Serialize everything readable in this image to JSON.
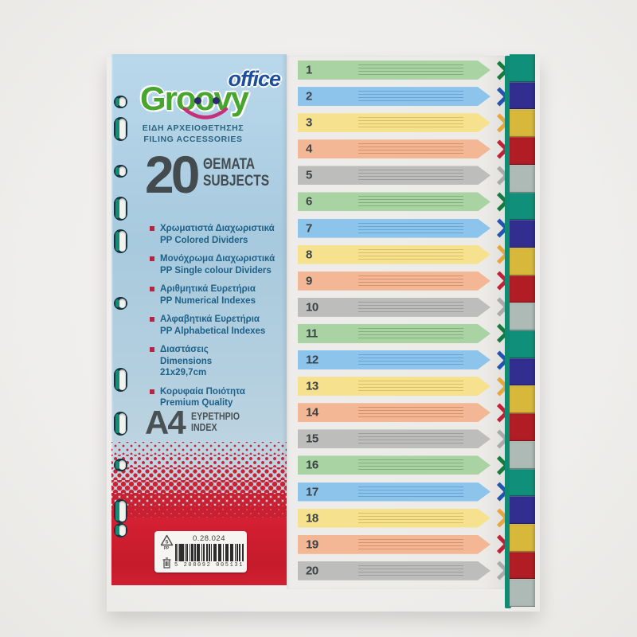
{
  "product": {
    "brand": {
      "name_top": "office",
      "name_main": "Groovy",
      "subtitle_gr": "ΕΙΔΗ ΑΡΧΕΙΟΘΕΤΗΣΗΣ",
      "subtitle_en": "FILING ACCESSORIES"
    },
    "count": {
      "number": "20",
      "label_gr": "ΘΕΜΑΤΑ",
      "label_en": "SUBJECTS"
    },
    "features": [
      {
        "gr": "Χρωματιστά Διαχωριστικά",
        "en": "PP Colored Dividers"
      },
      {
        "gr": "Μονόχρωμα Διαχωριστικά",
        "en": "PP Single colour Dividers"
      },
      {
        "gr": "Αριθμητικά Ευρετήρια",
        "en": "PP Numerical Indexes"
      },
      {
        "gr": "Αλφαβητικά Ευρετήρια",
        "en": "PP Alphabetical Indexes"
      },
      {
        "gr": "Διαστάσεις",
        "en": "Dimensions",
        "extra": "21x29,7cm"
      },
      {
        "gr": "Κορυφαία Ποιότητα",
        "en": "Premium Quality"
      }
    ],
    "format": {
      "size": "A4",
      "label_gr": "ΕΥΡΕΤΗΡΙΟ",
      "label_en": "INDEX"
    },
    "sticker": {
      "code": "0.28.024",
      "barcode_digits": "5 208092 005131",
      "recycle_number": "5",
      "recycle_material": "PP"
    },
    "index_rows": [
      {
        "label": "1",
        "color": "green"
      },
      {
        "label": "2",
        "color": "blue"
      },
      {
        "label": "3",
        "color": "yellow"
      },
      {
        "label": "4",
        "color": "salmon"
      },
      {
        "label": "5",
        "color": "gray"
      },
      {
        "label": "6",
        "color": "green"
      },
      {
        "label": "7",
        "color": "blue"
      },
      {
        "label": "8",
        "color": "yellow"
      },
      {
        "label": "9",
        "color": "salmon"
      },
      {
        "label": "10",
        "color": "gray"
      },
      {
        "label": "11",
        "color": "green"
      },
      {
        "label": "12",
        "color": "blue"
      },
      {
        "label": "13",
        "color": "yellow"
      },
      {
        "label": "14",
        "color": "salmon"
      },
      {
        "label": "15",
        "color": "gray"
      },
      {
        "label": "16",
        "color": "green"
      },
      {
        "label": "17",
        "color": "blue"
      },
      {
        "label": "18",
        "color": "yellow"
      },
      {
        "label": "19",
        "color": "salmon"
      },
      {
        "label": "20",
        "color": "gray"
      }
    ],
    "tabs": [
      "teal",
      "navy",
      "yellow",
      "red",
      "gray",
      "teal",
      "navy",
      "yellow",
      "red",
      "gray",
      "teal",
      "navy",
      "yellow",
      "red",
      "gray",
      "teal",
      "navy",
      "yellow",
      "red",
      "gray"
    ],
    "palette": {
      "bands": {
        "green": {
          "band": "#a9d3a3",
          "line": "#79ab74",
          "chev": "#157a3c"
        },
        "blue": {
          "band": "#8cc4ec",
          "line": "#5f9fd0",
          "chev": "#2453b0"
        },
        "yellow": {
          "band": "#f6e28e",
          "line": "#d3b958",
          "chev": "#e9a43c"
        },
        "salmon": {
          "band": "#f4b795",
          "line": "#d08a61",
          "chev": "#c42033"
        },
        "gray": {
          "band": "#bdbdbb",
          "line": "#979795",
          "chev": "#a9a9a7"
        }
      },
      "tabs": {
        "teal": "#10907a",
        "navy": "#322e90",
        "yellow": "#d8b83a",
        "red": "#b01d24",
        "gray": "#aebab6"
      },
      "accent_red": "#c51b2b",
      "panel_blue": "#a8cade",
      "text_navy": "#1e6188",
      "logo_blue": "#1d4f9c",
      "logo_green": "#48a52e",
      "logo_smile": "#c53078"
    }
  }
}
